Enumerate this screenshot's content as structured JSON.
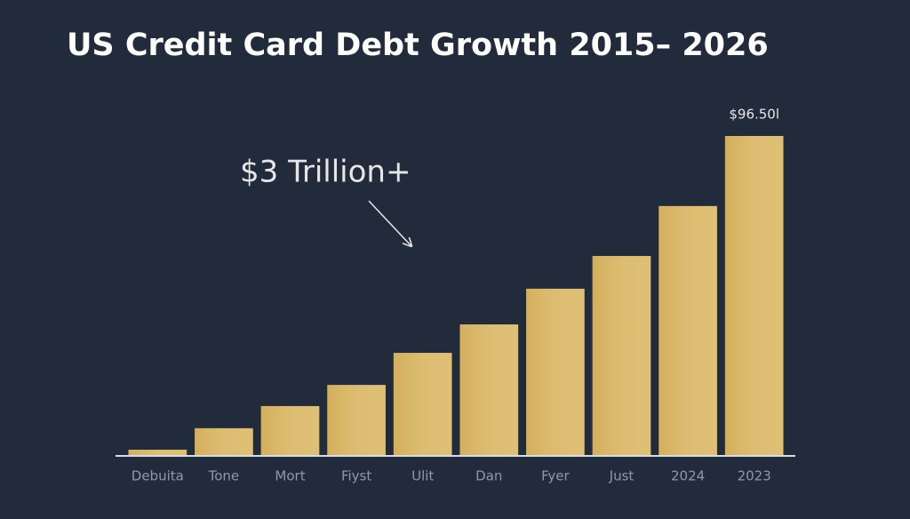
{
  "chart_data": {
    "type": "bar",
    "title": "US Credit Card Debt Growth 2015– 2026",
    "annotation": "$3 Trillion+",
    "categories": [
      "Debuita",
      "Tone",
      "Mort",
      "Fiyst",
      "Ulit",
      "Dan",
      "Fyer",
      "Just",
      "2024",
      "2023"
    ],
    "values": [
      1.6,
      8.1,
      14.8,
      21.2,
      30.9,
      39.5,
      50.3,
      60.2,
      75.3,
      96.5
    ],
    "value_labels": [
      null,
      null,
      null,
      null,
      null,
      null,
      null,
      null,
      null,
      "$96.50l"
    ],
    "color": "#d9b660"
  }
}
